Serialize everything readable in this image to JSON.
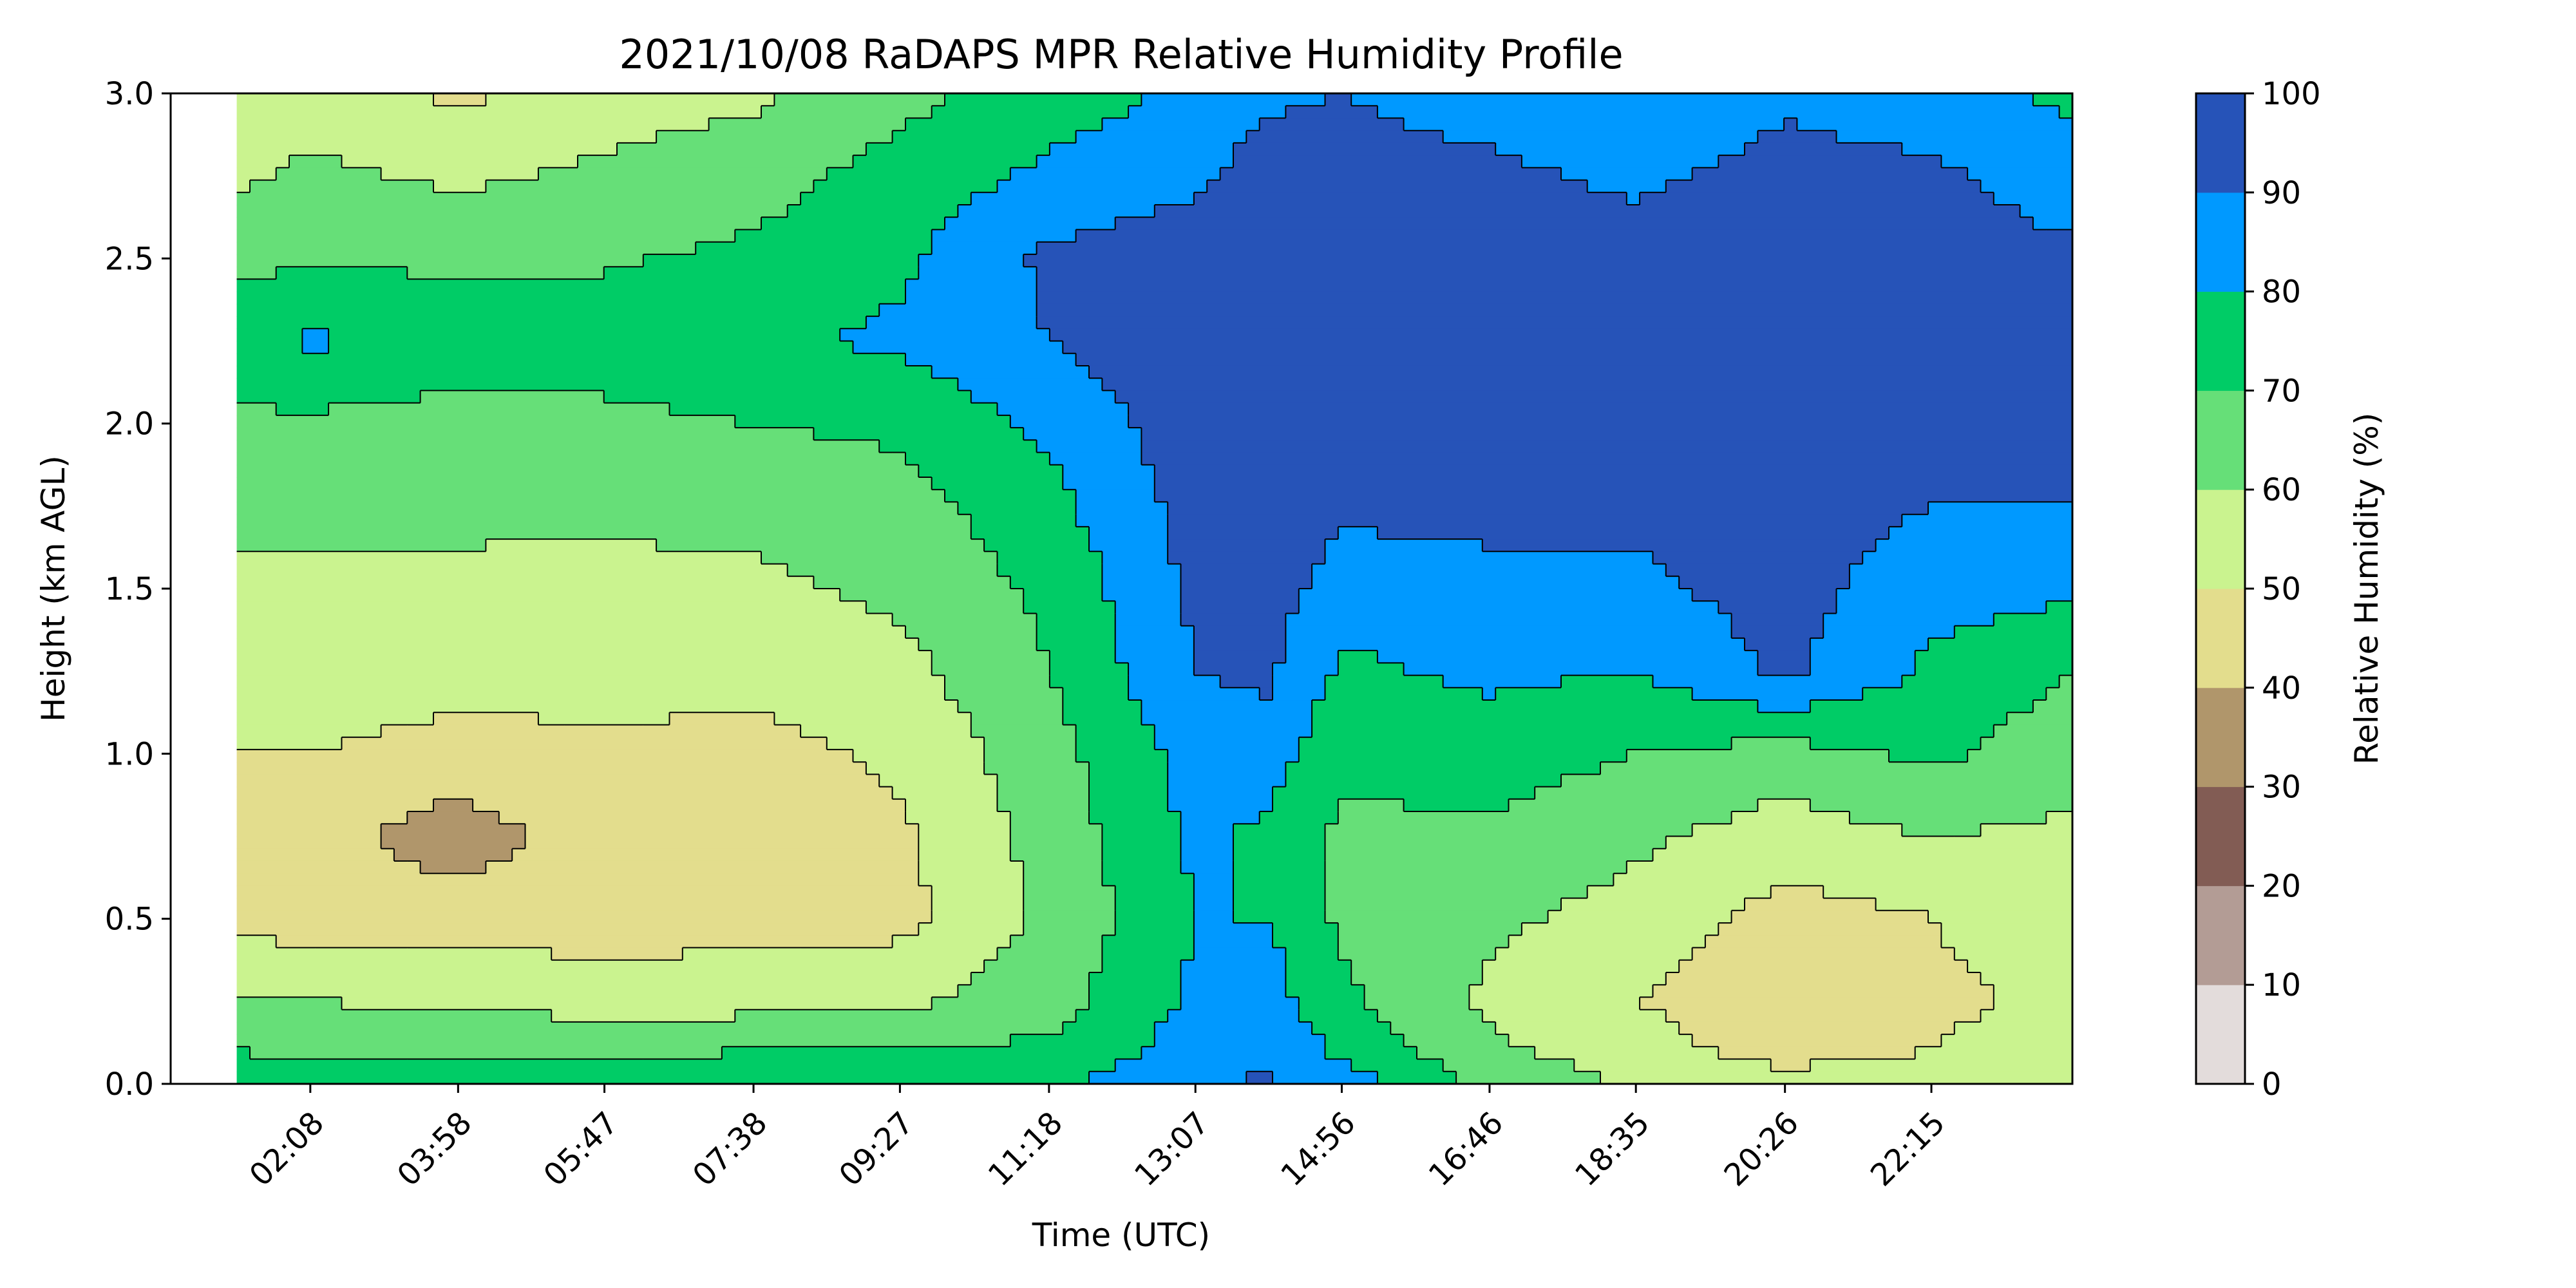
{
  "chart_data": {
    "type": "heatmap",
    "subtype": "filled-contour",
    "title": "2021/10/08 RaDAPS MPR Relative Humidity Profile",
    "xlabel": "Time (UTC)",
    "ylabel": "Height (km AGL)",
    "x_ticks": [
      "02:08",
      "03:58",
      "05:47",
      "07:38",
      "09:27",
      "11:18",
      "13:07",
      "14:56",
      "16:46",
      "18:35",
      "20:26",
      "22:15"
    ],
    "x_tick_hours": [
      2.133,
      3.967,
      5.783,
      7.633,
      9.45,
      11.3,
      13.117,
      14.933,
      16.767,
      18.583,
      20.433,
      22.25
    ],
    "x_range_hours": [
      0.4,
      24.0
    ],
    "data_start_hour": 1.22,
    "y_ticks": [
      "0.0",
      "0.5",
      "1.0",
      "1.5",
      "2.0",
      "2.5",
      "3.0"
    ],
    "ylim": [
      0,
      3.0
    ],
    "colorbar": {
      "label": "Relative Humidity (%)",
      "ticks": [
        "0",
        "10",
        "20",
        "30",
        "40",
        "50",
        "60",
        "70",
        "80",
        "90",
        "100"
      ],
      "levels": [
        0,
        10,
        20,
        30,
        40,
        50,
        60,
        70,
        80,
        90,
        100
      ],
      "colors": [
        "#e3dcdb",
        "#b39c95",
        "#825c54",
        "#b0966b",
        "#e3dd8d",
        "#caf38f",
        "#66df78",
        "#00cc66",
        "#0099ff",
        "#2653b8"
      ]
    },
    "height_km": [
      0.0,
      0.1,
      0.25,
      0.5,
      0.75,
      1.0,
      1.25,
      1.5,
      1.75,
      2.0,
      2.25,
      2.5,
      2.75,
      3.0
    ],
    "times_hours": [
      1.22,
      2.133,
      3.967,
      5.783,
      7.633,
      9.45,
      11.3,
      13.117,
      14.0,
      14.933,
      16.767,
      18.583,
      20.433,
      22.25,
      24.0
    ],
    "rh_percent": [
      [
        75,
        75,
        75,
        76,
        75,
        76,
        78,
        88,
        92,
        85,
        68,
        58,
        55,
        56,
        58
      ],
      [
        70,
        68,
        68,
        68,
        70,
        70,
        72,
        85,
        88,
        78,
        62,
        55,
        45,
        50,
        55
      ],
      [
        60,
        60,
        58,
        56,
        56,
        58,
        66,
        82,
        85,
        72,
        58,
        50,
        42,
        48,
        52
      ],
      [
        48,
        45,
        45,
        45,
        46,
        47,
        62,
        80,
        80,
        68,
        62,
        56,
        46,
        50,
        55
      ],
      [
        48,
        44,
        35,
        45,
        44,
        48,
        64,
        82,
        78,
        68,
        68,
        62,
        55,
        60,
        58
      ],
      [
        50,
        50,
        46,
        48,
        46,
        52,
        66,
        84,
        85,
        72,
        75,
        70,
        66,
        72,
        64
      ],
      [
        55,
        56,
        54,
        54,
        54,
        57,
        70,
        90,
        92,
        78,
        82,
        80,
        92,
        78,
        70
      ],
      [
        58,
        58,
        58,
        57,
        58,
        62,
        72,
        92,
        95,
        85,
        88,
        88,
        94,
        84,
        82
      ],
      [
        62,
        63,
        62,
        62,
        63,
        66,
        77,
        94,
        96,
        92,
        92,
        92,
        95,
        90,
        90
      ],
      [
        68,
        68,
        66,
        68,
        70,
        72,
        82,
        96,
        97,
        95,
        95,
        95,
        96,
        93,
        92
      ],
      [
        76,
        82,
        75,
        74,
        78,
        82,
        90,
        97,
        97,
        96,
        96,
        96,
        97,
        95,
        93
      ],
      [
        67,
        69,
        68,
        69,
        72,
        78,
        92,
        96,
        97,
        96,
        96,
        95,
        96,
        94,
        92
      ],
      [
        58,
        62,
        58,
        62,
        66,
        74,
        82,
        88,
        95,
        94,
        92,
        88,
        94,
        92,
        85
      ],
      [
        52,
        56,
        48,
        55,
        58,
        67,
        75,
        82,
        88,
        90,
        86,
        80,
        88,
        84,
        78
      ]
    ]
  }
}
